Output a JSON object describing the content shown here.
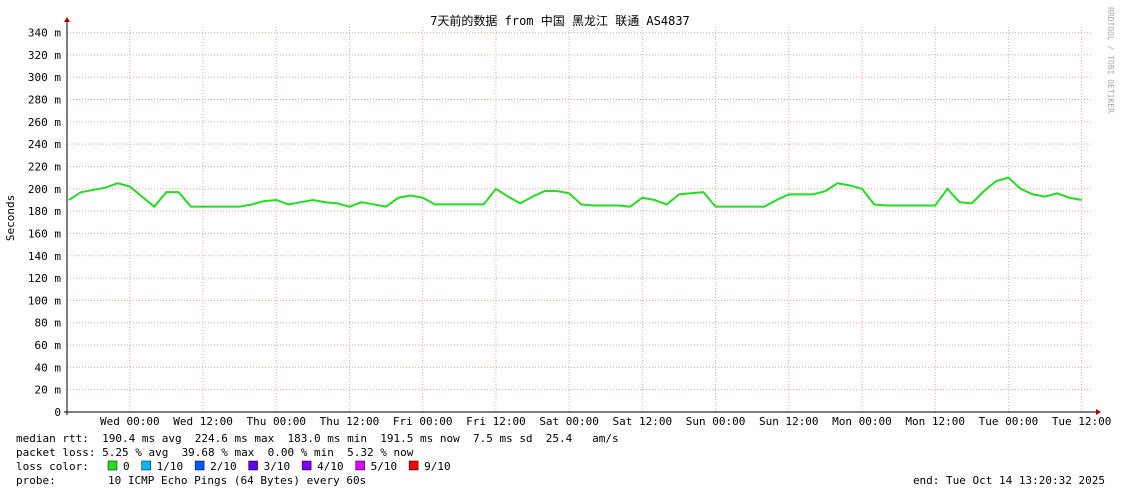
{
  "chart_data": {
    "type": "line",
    "title": "7天前的数据 from 中国 黑龙江 联通 AS4837",
    "y_label": "Seconds",
    "watermark": "RRDTOOL / TOBI OETIKER",
    "x": [
      -10,
      -8,
      -6,
      -4,
      -2,
      0,
      2,
      4,
      6,
      8,
      10,
      12,
      14,
      16,
      18,
      20,
      22,
      24,
      26,
      28,
      30,
      32,
      34,
      36,
      38,
      40,
      42,
      44,
      46,
      48,
      50,
      52,
      54,
      56,
      58,
      60,
      62,
      64,
      66,
      68,
      70,
      72,
      74,
      76,
      78,
      80,
      82,
      84,
      86,
      88,
      90,
      92,
      94,
      96,
      98,
      100,
      102,
      104,
      106,
      108,
      110,
      112,
      114,
      116,
      118,
      120,
      122,
      124,
      126,
      128,
      130,
      132,
      134,
      136,
      138,
      140,
      142,
      144,
      146,
      148,
      150,
      152,
      154,
      156
    ],
    "series": [
      {
        "name": "median rtt",
        "color": "#22dd22",
        "values": [
          190,
          197,
          199,
          201,
          205,
          202,
          193,
          184,
          197,
          197,
          184,
          184,
          184,
          184,
          184,
          186,
          189,
          190,
          186,
          188,
          190,
          188,
          187,
          184,
          188,
          186,
          184,
          192,
          194,
          192,
          186,
          186,
          186,
          186,
          186,
          200,
          193,
          187,
          193,
          198,
          198,
          196,
          186,
          185,
          185,
          185,
          184,
          192,
          190,
          186,
          195,
          196,
          197,
          184,
          184,
          184,
          184,
          184,
          190,
          195,
          195,
          195,
          198,
          205,
          203,
          200,
          186,
          185,
          185,
          185,
          185,
          185,
          200,
          188,
          187,
          198,
          207,
          210,
          200,
          195,
          193,
          196,
          192,
          190
        ]
      }
    ],
    "xlim": [
      -10.3,
      157.7
    ],
    "xticks": [
      {
        "value": 0,
        "label": "Wed 00:00"
      },
      {
        "value": 12,
        "label": "Wed 12:00"
      },
      {
        "value": 24,
        "label": "Thu 00:00"
      },
      {
        "value": 36,
        "label": "Thu 12:00"
      },
      {
        "value": 48,
        "label": "Fri 00:00"
      },
      {
        "value": 60,
        "label": "Fri 12:00"
      },
      {
        "value": 72,
        "label": "Sat 00:00"
      },
      {
        "value": 84,
        "label": "Sat 12:00"
      },
      {
        "value": 96,
        "label": "Sun 00:00"
      },
      {
        "value": 108,
        "label": "Sun 12:00"
      },
      {
        "value": 120,
        "label": "Mon 00:00"
      },
      {
        "value": 132,
        "label": "Mon 12:00"
      },
      {
        "value": 144,
        "label": "Tue 00:00"
      },
      {
        "value": 156,
        "label": "Tue 12:00"
      }
    ],
    "ylim": [
      0,
      345
    ],
    "yticks": [
      0,
      {
        "value": 20,
        "label": "20 m"
      },
      {
        "value": 40,
        "label": "40 m"
      },
      {
        "value": 60,
        "label": "60 m"
      },
      {
        "value": 80,
        "label": "80 m"
      },
      {
        "value": 100,
        "label": "100 m"
      },
      {
        "value": 120,
        "label": "120 m"
      },
      {
        "value": 140,
        "label": "140 m"
      },
      {
        "value": 160,
        "label": "160 m"
      },
      {
        "value": 180,
        "label": "180 m"
      },
      {
        "value": 200,
        "label": "200 m"
      },
      {
        "value": 220,
        "label": "220 m"
      },
      {
        "value": 240,
        "label": "240 m"
      },
      {
        "value": 260,
        "label": "260 m"
      },
      {
        "value": 280,
        "label": "280 m"
      },
      {
        "value": 300,
        "label": "300 m"
      },
      {
        "value": 320,
        "label": "320 m"
      },
      {
        "value": 340,
        "label": "340 m"
      }
    ],
    "grid": true,
    "stats": [
      "median rtt:  190.4 ms avg  224.6 ms max  183.0 ms min  191.5 ms now  7.5 ms sd  25.4   am/s",
      "packet loss: 5.25 % avg  39.68 % max  0.00 % min  5.32 % now"
    ],
    "loss_color_label": "loss color:",
    "loss_colors": [
      {
        "name": "0",
        "color": "#22dd22"
      },
      {
        "name": "1/10",
        "color": "#00b8ff"
      },
      {
        "name": "2/10",
        "color": "#0059ff"
      },
      {
        "name": "3/10",
        "color": "#5e00ff"
      },
      {
        "name": "4/10",
        "color": "#7e00ff"
      },
      {
        "name": "5/10",
        "color": "#dd00ff"
      },
      {
        "name": "9/10",
        "color": "#ff0000"
      }
    ],
    "probe_label": "probe:",
    "probe": "10 ICMP Echo Pings (64 Bytes) every 60s",
    "end": "end: Tue Oct 14 13:20:32 2025"
  }
}
